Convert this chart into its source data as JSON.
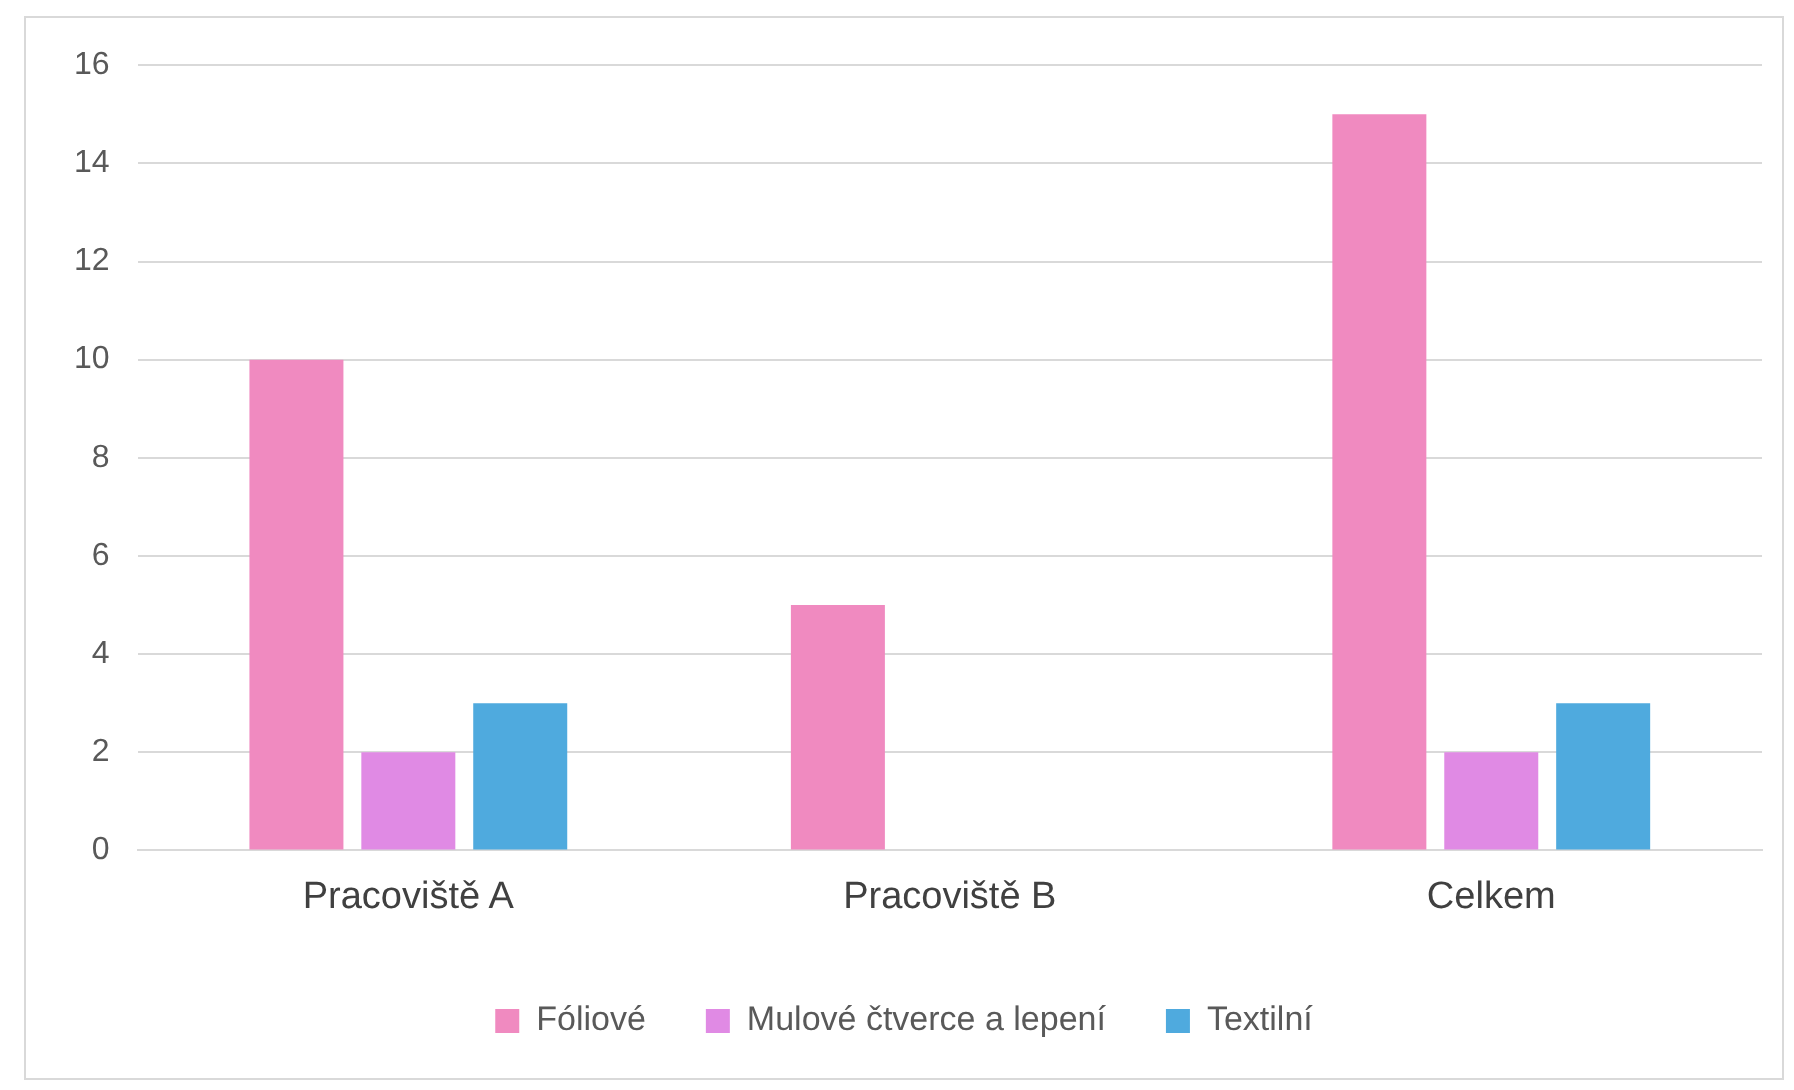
{
  "chart_data": {
    "type": "bar",
    "categories": [
      "Pracoviště A",
      "Pracoviště B",
      "Celkem"
    ],
    "series": [
      {
        "name": "Fóliové",
        "color": "#f08ac0",
        "values": [
          10,
          5,
          15
        ]
      },
      {
        "name": "Mulové čtverce a lepení",
        "color": "#e08ae4",
        "values": [
          2,
          0,
          2
        ]
      },
      {
        "name": "Textilní",
        "color": "#4faade",
        "values": [
          3,
          0,
          3
        ]
      }
    ],
    "ylim": [
      0,
      16
    ],
    "yticks": [
      0,
      2,
      4,
      6,
      8,
      10,
      12,
      14,
      16
    ],
    "grid": "y",
    "legend": "bottom"
  }
}
